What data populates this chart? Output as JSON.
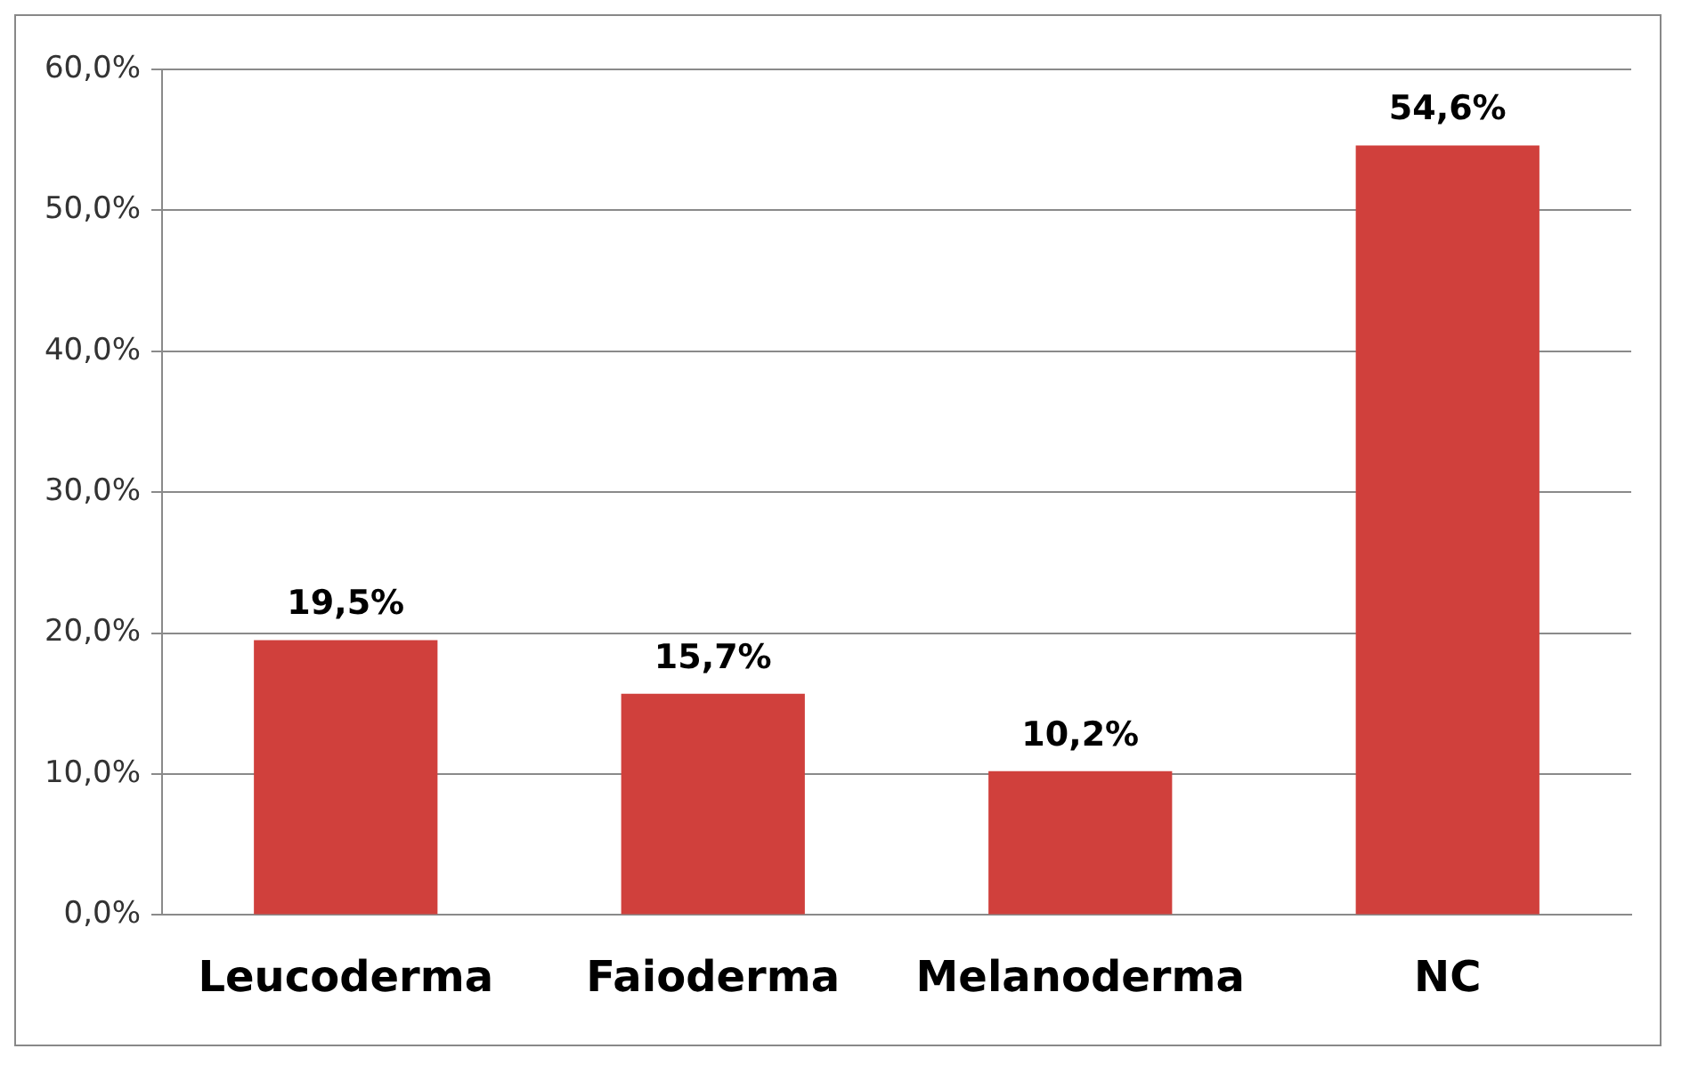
{
  "chart_data": {
    "type": "bar",
    "categories": [
      "Leucoderma",
      "Faioderma",
      "Melanoderma",
      "NC"
    ],
    "values": [
      19.5,
      15.7,
      10.2,
      54.6
    ],
    "value_labels": [
      "19,5%",
      "15,7%",
      "10,2%",
      "54,6%"
    ],
    "color": "#d0403c",
    "ylim": [
      0,
      60
    ],
    "yticks": [
      {
        "value": 0,
        "label": "0,0%"
      },
      {
        "value": 10,
        "label": "10,0%"
      },
      {
        "value": 20,
        "label": "20,0%"
      },
      {
        "value": 30,
        "label": "30,0%"
      },
      {
        "value": 40,
        "label": "40,0%"
      },
      {
        "value": 50,
        "label": "50,0%"
      },
      {
        "value": 60,
        "label": "60,0%"
      }
    ],
    "grid": "y",
    "legend": false
  }
}
